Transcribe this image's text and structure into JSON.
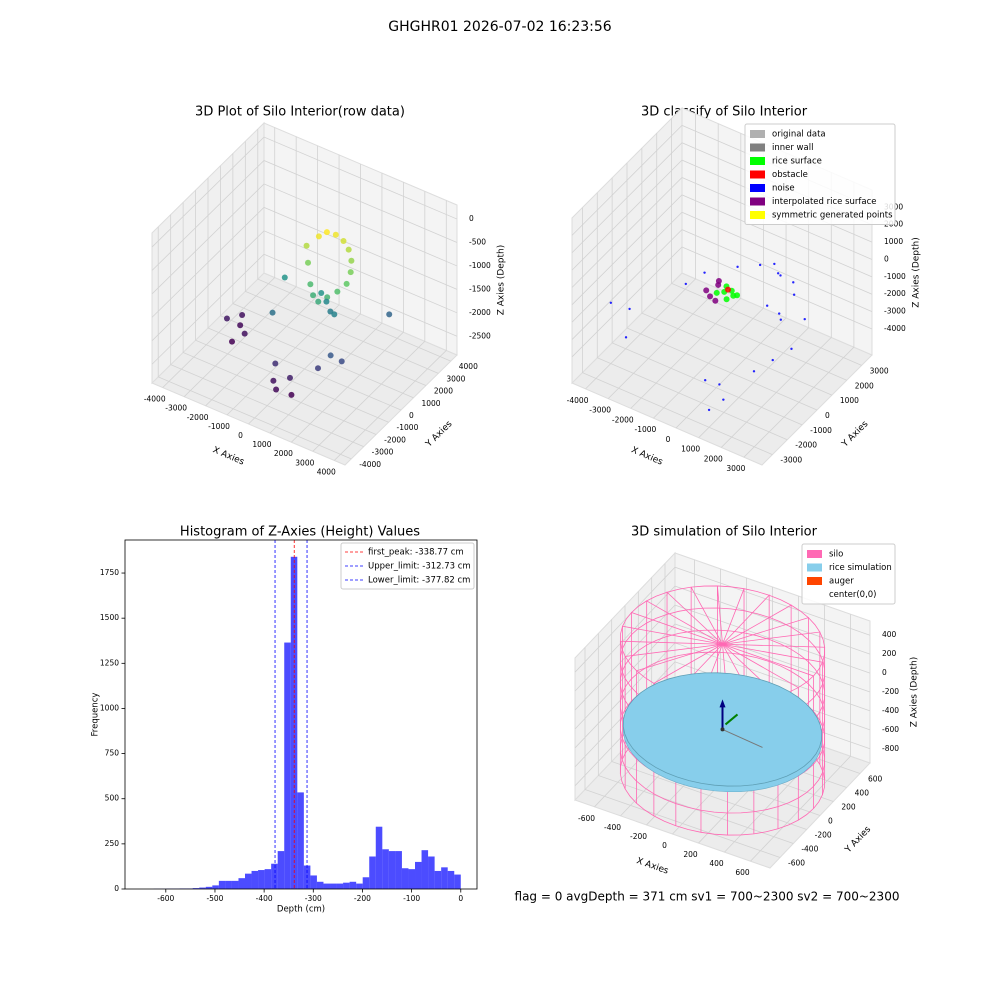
{
  "title": "GHGHR01 2026-07-02 16:23:56",
  "footer": "flag = 0     avgDepth = 371 cm  sv1 = 700~2300  sv2 = 700~2300",
  "chart_data": [
    {
      "type": "scatter3d",
      "title": "3D Plot of Silo Interior(row data)",
      "xlabel": "X Axies",
      "ylabel": "Y Axies",
      "zlabel": "Z Axies (Depth)",
      "xlim": [
        -4500,
        4500
      ],
      "ylim": [
        -4500,
        4500
      ],
      "zlim": [
        -2900,
        300
      ],
      "xticks": [
        -4000,
        -3000,
        -2000,
        -1000,
        0,
        1000,
        2000,
        3000,
        4000
      ],
      "yticks": [
        -4000,
        -3000,
        -2000,
        -1000,
        0,
        1000,
        2000,
        3000,
        4000
      ],
      "zticks": [
        -2500,
        -2000,
        -1500,
        -1000,
        -500,
        0
      ],
      "colormap": "viridis",
      "series": [
        {
          "x": [
            -200,
            0,
            300,
            600,
            900,
            1200,
            1400,
            1500,
            1300,
            1000,
            700,
            400,
            100,
            -300,
            -600,
            200,
            500,
            800,
            1100,
            -2500,
            -3000,
            -2800,
            -3500,
            -3200,
            0,
            300,
            600,
            900,
            -200,
            1500,
            1800,
            2200,
            2500,
            -1200,
            -1500
          ],
          "y": [
            1500,
            1800,
            2000,
            2100,
            2000,
            1700,
            1300,
            800,
            400,
            100,
            -100,
            0,
            300,
            800,
            1200,
            1000,
            900,
            700,
            500,
            -500,
            0,
            -1000,
            -200,
            500,
            -2500,
            -2800,
            -2200,
            -2600,
            -2000,
            -1500,
            -1000,
            -800,
            2500,
            -500,
            1000
          ],
          "z": [
            -500,
            -450,
            -500,
            -600,
            -700,
            -800,
            -900,
            -1000,
            -1100,
            -1200,
            -1300,
            -1250,
            -1150,
            -900,
            -700,
            -1500,
            -1600,
            -1700,
            -1650,
            -2500,
            -2550,
            -2600,
            -2450,
            -2500,
            -2500,
            -2550,
            -2400,
            -2600,
            -2300,
            -2200,
            -2000,
            -2100,
            -1900,
            -1800,
            -1500
          ]
        }
      ]
    },
    {
      "type": "scatter3d",
      "title": "3D classify of Silo Interior",
      "xlabel": "X Axies",
      "ylabel": "Y Axies",
      "zlabel": "Z Axies (Depth)",
      "xlim": [
        -4600,
        3800
      ],
      "ylim": [
        -3700,
        3700
      ],
      "zlim": [
        -5500,
        4000
      ],
      "xticks": [
        -4000,
        -3000,
        -2000,
        -1000,
        0,
        1000,
        2000,
        3000
      ],
      "yticks": [
        -3000,
        -2000,
        -1000,
        0,
        1000,
        2000,
        3000
      ],
      "zticks": [
        -4000,
        -3000,
        -2000,
        -1000,
        0,
        1000,
        2000,
        3000
      ],
      "legend": "upper right",
      "series": [
        {
          "name": "original data",
          "color": "#b0b0b0",
          "x": [],
          "y": [],
          "z": []
        },
        {
          "name": "inner wall",
          "color": "#808080",
          "x": [],
          "y": [],
          "z": []
        },
        {
          "name": "rice surface",
          "color": "#00ff00",
          "x": [
            -500,
            -300,
            -100,
            100,
            -400,
            0,
            200
          ],
          "y": [
            -200,
            0,
            200,
            0,
            300,
            -300,
            100
          ],
          "z": [
            -1000,
            -1000,
            -1000,
            -1000,
            -1000,
            -1000,
            -1000
          ]
        },
        {
          "name": "obstacle",
          "color": "#ff0000",
          "x": [
            -200
          ],
          "y": [
            100
          ],
          "z": [
            -900
          ]
        },
        {
          "name": "noise",
          "color": "#0000ff",
          "x": [
            -4000,
            -3500,
            -3000,
            -2000,
            -1500,
            500,
            800,
            1000,
            1500,
            2000,
            2500,
            3000,
            1200,
            900,
            600,
            300,
            -500,
            1800,
            2200,
            2600,
            2000,
            1700,
            1400
          ],
          "y": [
            -2000,
            -1500,
            -2500,
            0,
            500,
            -2500,
            -2000,
            -3000,
            -2800,
            -1500,
            -1000,
            -500,
            1500,
            1800,
            2000,
            1500,
            1200,
            500,
            0,
            1000,
            1200,
            1600,
            300
          ],
          "z": [
            -2000,
            -2500,
            -3000,
            -1500,
            -1000,
            -3500,
            -4000,
            -4500,
            -3800,
            -3000,
            -2500,
            -2000,
            -500,
            -800,
            -600,
            -400,
            -700,
            -1500,
            -1200,
            -1800,
            -900,
            -700,
            -1100
          ]
        },
        {
          "name": "interpolated rice surface",
          "color": "#800080",
          "x": [
            -900,
            -700,
            -600,
            -800,
            -300
          ],
          "y": [
            -300,
            200,
            -500,
            400,
            -600
          ],
          "z": [
            -1000,
            -1000,
            -1000,
            -1000,
            -1000
          ]
        },
        {
          "name": "symmetric generated points",
          "color": "#ffff00",
          "x": [],
          "y": [],
          "z": []
        }
      ]
    },
    {
      "type": "histogram",
      "title": "Histogram of Z-Axies (Height) Values",
      "xlabel": "Depth (cm)",
      "ylabel": "Frequency",
      "xlim": [
        -683,
        33
      ],
      "ylim": [
        0,
        1933
      ],
      "xticks": [
        -600,
        -500,
        -400,
        -300,
        -200,
        -100,
        0
      ],
      "yticks": [
        0,
        250,
        500,
        750,
        1000,
        1250,
        1500,
        1750
      ],
      "color": "#0000ff",
      "alpha": 0.7,
      "legend": "upper right",
      "bins": [
        -665,
        -651.7,
        -638.4,
        -625.1,
        -611.8,
        -598.5,
        -585.2,
        -571.9,
        -558.6,
        -545.3,
        -532,
        -518.7,
        -505.4,
        -492.1,
        -478.8,
        -465.5,
        -452.2,
        -438.9,
        -425.6,
        -412.3,
        -399,
        -385.7,
        -372.4,
        -359.1,
        -345.8,
        -332.5,
        -319.2,
        -305.9,
        -292.6,
        -279.3,
        -266,
        -252.7,
        -239.4,
        -226.1,
        -212.8,
        -199.5,
        -186.2,
        -172.9,
        -159.6,
        -146.3,
        -133,
        -119.7,
        -106.4,
        -93.1,
        -79.8,
        -66.5,
        -53.2,
        -39.9,
        -26.6,
        -13.3,
        0
      ],
      "counts": [
        0,
        0,
        0,
        1,
        1,
        2,
        2,
        3,
        3,
        5,
        8,
        12,
        20,
        45,
        45,
        45,
        60,
        85,
        100,
        105,
        110,
        140,
        210,
        1365,
        1840,
        535,
        130,
        75,
        40,
        30,
        30,
        30,
        35,
        40,
        30,
        65,
        180,
        345,
        220,
        210,
        210,
        115,
        110,
        150,
        215,
        180,
        100,
        120,
        100,
        80
      ],
      "lines": [
        {
          "name": "first_peak: -338.77 cm",
          "value": -338.77,
          "color": "#ff0000"
        },
        {
          "name": "Upper_limit: -312.73 cm",
          "value": -312.73,
          "color": "#0000ff"
        },
        {
          "name": "Lower_limit: -377.82 cm",
          "value": -377.82,
          "color": "#0000ff"
        }
      ]
    },
    {
      "type": "silo3d",
      "title": "3D simulation of Silo Interior",
      "xlabel": "X Axies",
      "ylabel": "Y Axies",
      "zlabel": "Z Axies (Depth)",
      "xlim": [
        -750,
        750
      ],
      "ylim": [
        -750,
        750
      ],
      "zlim": [
        -950,
        550
      ],
      "xticks": [
        -600,
        -400,
        -200,
        0,
        200,
        400,
        600
      ],
      "yticks": [
        -600,
        -400,
        -200,
        0,
        200,
        400,
        600
      ],
      "zticks": [
        -800,
        -600,
        -400,
        -200,
        0,
        200,
        400
      ],
      "legend": "upper right",
      "series": [
        {
          "name": "silo",
          "color": "#ff69b4",
          "radius": 700,
          "zlim": [
            -900,
            500
          ]
        },
        {
          "name": "rice simulation",
          "color": "#87ceeb",
          "radius": 680,
          "z": -400
        },
        {
          "name": "auger",
          "color": "#ff4500"
        },
        {
          "name": "center(0,0)",
          "color": "#ffffff"
        }
      ]
    }
  ]
}
